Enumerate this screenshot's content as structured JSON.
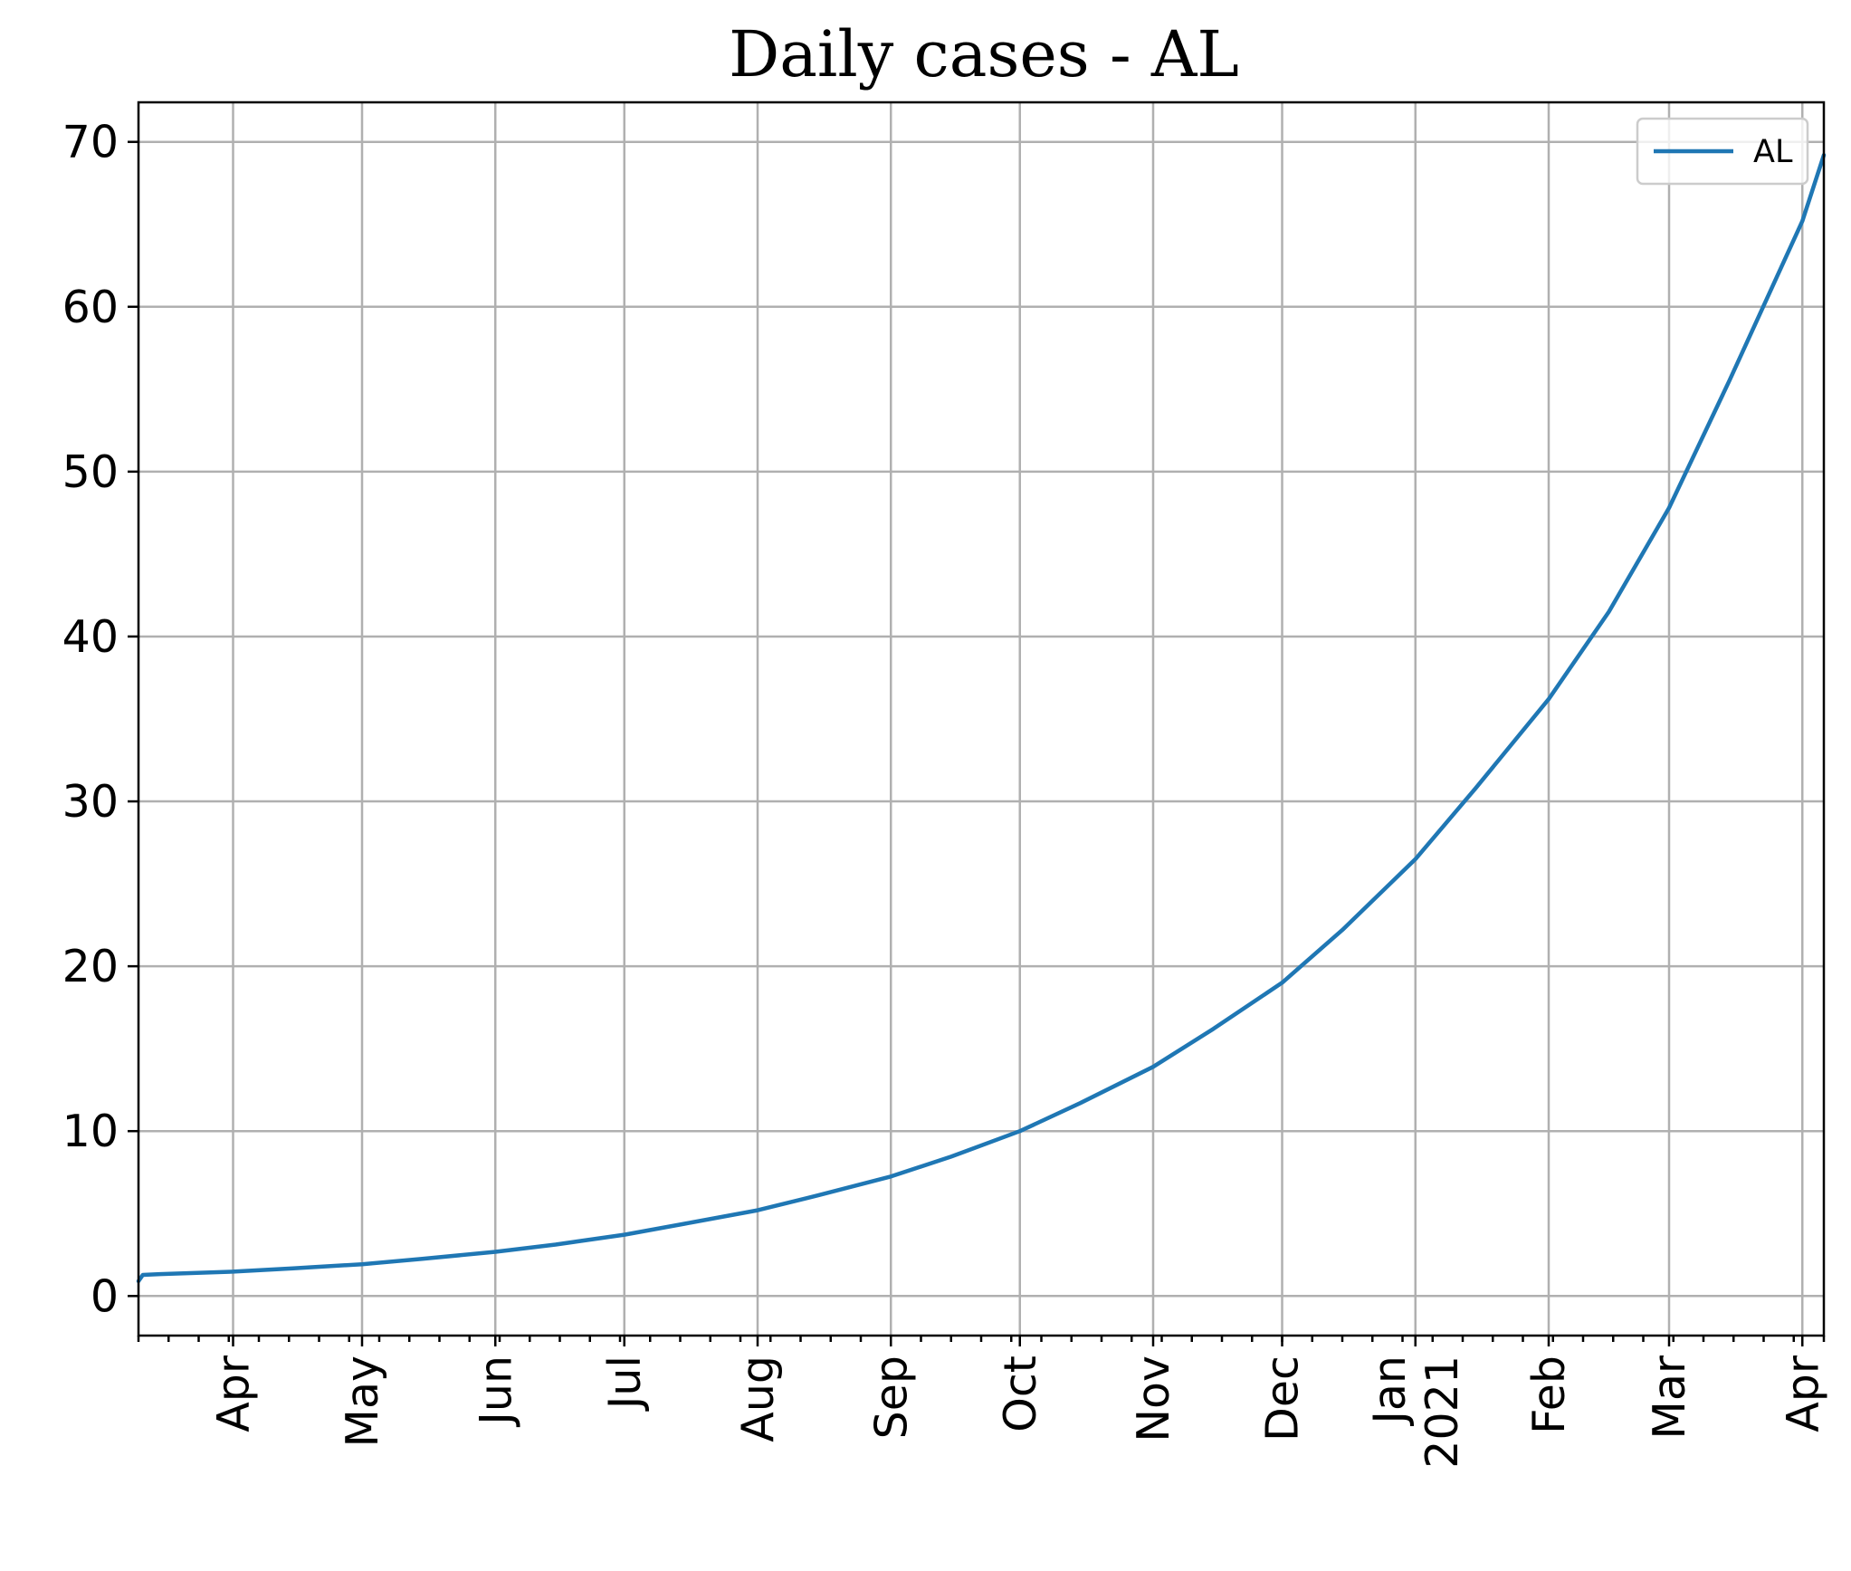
{
  "chart_data": {
    "type": "line",
    "title": "Daily cases - AL",
    "xlabel": "",
    "ylabel": "",
    "x_type": "date",
    "xlim": [
      "2020-03-10",
      "2021-04-06"
    ],
    "ylim": [
      -2.4,
      72.4
    ],
    "grid": true,
    "legend_position": "top-right",
    "y_ticks": [
      0,
      10,
      20,
      30,
      40,
      50,
      60,
      70
    ],
    "x_ticks": [
      {
        "date": "2020-04-01",
        "label": "Apr"
      },
      {
        "date": "2020-05-01",
        "label": "May"
      },
      {
        "date": "2020-06-01",
        "label": "Jun"
      },
      {
        "date": "2020-07-01",
        "label": "Jul"
      },
      {
        "date": "2020-08-01",
        "label": "Aug"
      },
      {
        "date": "2020-09-01",
        "label": "Sep"
      },
      {
        "date": "2020-10-01",
        "label": "Oct"
      },
      {
        "date": "2020-11-01",
        "label": "Nov"
      },
      {
        "date": "2020-12-01",
        "label": "Dec"
      },
      {
        "date": "2021-01-01",
        "label": "Jan\n2021"
      },
      {
        "date": "2021-02-01",
        "label": "Feb"
      },
      {
        "date": "2021-03-01",
        "label": "Mar"
      },
      {
        "date": "2021-04-01",
        "label": "Apr"
      }
    ],
    "series": [
      {
        "name": "AL",
        "color": "#1f77b4",
        "points": [
          {
            "x": "2020-03-10",
            "y": 0.9
          },
          {
            "x": "2020-03-11",
            "y": 1.28
          },
          {
            "x": "2020-03-15",
            "y": 1.33
          },
          {
            "x": "2020-04-01",
            "y": 1.48
          },
          {
            "x": "2020-04-15",
            "y": 1.68
          },
          {
            "x": "2020-05-01",
            "y": 1.93
          },
          {
            "x": "2020-05-15",
            "y": 2.25
          },
          {
            "x": "2020-06-01",
            "y": 2.68
          },
          {
            "x": "2020-06-15",
            "y": 3.12
          },
          {
            "x": "2020-07-01",
            "y": 3.72
          },
          {
            "x": "2020-07-15",
            "y": 4.38
          },
          {
            "x": "2020-08-01",
            "y": 5.2
          },
          {
            "x": "2020-08-15",
            "y": 6.1
          },
          {
            "x": "2020-09-01",
            "y": 7.25
          },
          {
            "x": "2020-09-15",
            "y": 8.45
          },
          {
            "x": "2020-10-01",
            "y": 10.0
          },
          {
            "x": "2020-10-15",
            "y": 11.7
          },
          {
            "x": "2020-11-01",
            "y": 13.9
          },
          {
            "x": "2020-11-15",
            "y": 16.2
          },
          {
            "x": "2020-12-01",
            "y": 19.0
          },
          {
            "x": "2020-12-15",
            "y": 22.2
          },
          {
            "x": "2021-01-01",
            "y": 26.5
          },
          {
            "x": "2021-01-15",
            "y": 30.8
          },
          {
            "x": "2021-02-01",
            "y": 36.2
          },
          {
            "x": "2021-02-15",
            "y": 41.5
          },
          {
            "x": "2021-03-01",
            "y": 47.8
          },
          {
            "x": "2021-03-15",
            "y": 55.5
          },
          {
            "x": "2021-04-01",
            "y": 65.2
          },
          {
            "x": "2021-04-06",
            "y": 69.2
          }
        ]
      }
    ]
  }
}
